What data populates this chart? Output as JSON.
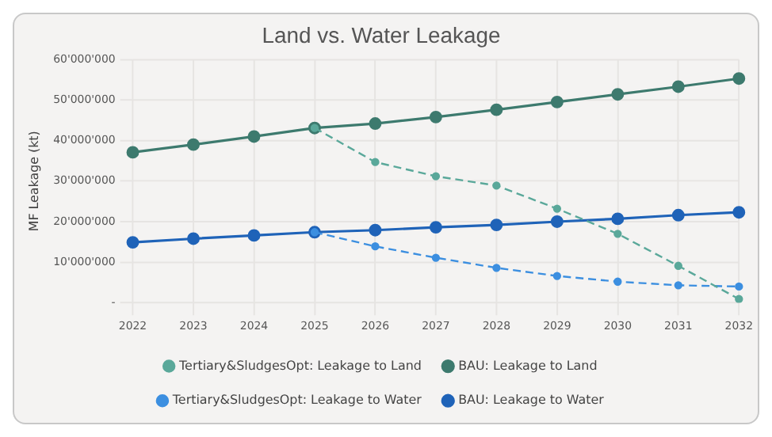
{
  "chart_data": {
    "type": "line",
    "title": "Land vs. Water Leakage",
    "ylabel": "MF Leakage (kt)",
    "categories": [
      "2022",
      "2023",
      "2024",
      "2025",
      "2026",
      "2027",
      "2028",
      "2029",
      "2030",
      "2031",
      "2032"
    ],
    "series": [
      {
        "name": "Tertiary&SludgesOpt: Leakage to Land",
        "color": "#5aa89a",
        "line_style": "dashed",
        "values": [
          null,
          null,
          null,
          43100000.0,
          34700000.0,
          31200000.0,
          28900000.0,
          23200000.0,
          17000000.0,
          9100000.0,
          900000.0
        ]
      },
      {
        "name": "BAU: Leakage to Land",
        "color": "#3d7a6e",
        "line_style": "solid",
        "values": [
          37100000.0,
          39000000.0,
          41000000.0,
          43100000.0,
          44200000.0,
          45800000.0,
          47600000.0,
          49500000.0,
          51400000.0,
          53300000.0,
          55300000.0
        ]
      },
      {
        "name": "Tertiary&SludgesOpt: Leakage to Water",
        "color": "#3c8fe0",
        "line_style": "dashed",
        "values": [
          null,
          null,
          null,
          17400000.0,
          13900000.0,
          11100000.0,
          8600000.0,
          6600000.0,
          5200000.0,
          4300000.0,
          4000000.0
        ]
      },
      {
        "name": "BAU: Leakage to Water",
        "color": "#1f63b8",
        "line_style": "solid",
        "values": [
          14900000.0,
          15800000.0,
          16600000.0,
          17400000.0,
          17900000.0,
          18600000.0,
          19200000.0,
          20000000.0,
          20700000.0,
          21600000.0,
          22300000.0
        ]
      }
    ],
    "ylim": [
      0,
      60000000
    ],
    "yticks": [
      {
        "value": 0,
        "label": "-"
      },
      {
        "value": 10000000,
        "label": "10'000'000"
      },
      {
        "value": 20000000,
        "label": "20'000'000"
      },
      {
        "value": 30000000,
        "label": "30'000'000"
      },
      {
        "value": 40000000,
        "label": "40'000'000"
      },
      {
        "value": 50000000,
        "label": "50'000'000"
      },
      {
        "value": 60000000,
        "label": "60'000'000"
      }
    ],
    "grid": true,
    "legend": "bottom",
    "marker": "circle"
  }
}
